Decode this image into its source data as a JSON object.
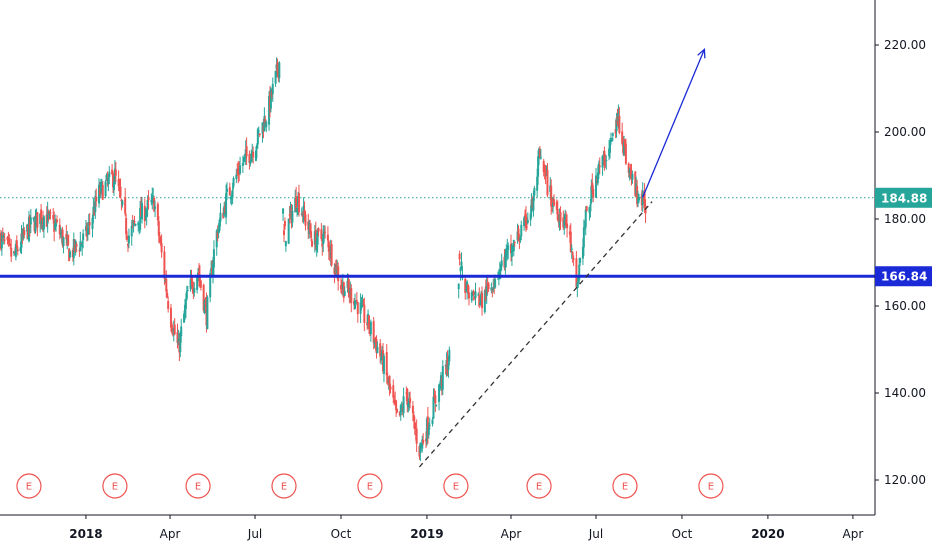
{
  "chart_data": {
    "type": "candlestick",
    "y_axis": {
      "min": 115,
      "max": 230,
      "ticks": [
        "220.00",
        "200.00",
        "180.00",
        "160.00",
        "140.00",
        "120.00"
      ],
      "tick_values": [
        220,
        200,
        180,
        160,
        140,
        120
      ],
      "position": "right"
    },
    "x_axis": {
      "labels": [
        "2018",
        "Apr",
        "Jul",
        "Oct",
        "2019",
        "Apr",
        "Jul",
        "Oct",
        "2020",
        "Apr"
      ],
      "label_dates": [
        "2018-01-01",
        "2018-04-01",
        "2018-07-01",
        "2018-10-01",
        "2019-01-01",
        "2019-04-01",
        "2019-07-01",
        "2019-10-01",
        "2020-01-01",
        "2020-04-01"
      ],
      "bold_labels": [
        "2018",
        "2019",
        "2020"
      ],
      "start": "2017-10-01",
      "end": "2020-04-15"
    },
    "colors": {
      "up": "#26a69a",
      "down": "#ef5350",
      "support_line": "#1a2ad6",
      "price_line": "#26a69a",
      "arrow": "#1a2ad6",
      "trendline": "#333333",
      "earnings": "#ef5350"
    },
    "price_series": [
      [
        "2017-10-01",
        176
      ],
      [
        "2017-10-15",
        171
      ],
      [
        "2017-11-01",
        178
      ],
      [
        "2017-11-15",
        181
      ],
      [
        "2017-12-01",
        178
      ],
      [
        "2017-12-15",
        172
      ],
      [
        "2018-01-01",
        176
      ],
      [
        "2018-01-15",
        186
      ],
      [
        "2018-02-01",
        190
      ],
      [
        "2018-02-15",
        176
      ],
      [
        "2018-03-01",
        181
      ],
      [
        "2018-03-15",
        184
      ],
      [
        "2018-04-01",
        158
      ],
      [
        "2018-04-10",
        150
      ],
      [
        "2018-04-20",
        163
      ],
      [
        "2018-05-01",
        168
      ],
      [
        "2018-05-10",
        158
      ],
      [
        "2018-05-20",
        176
      ],
      [
        "2018-06-01",
        185
      ],
      [
        "2018-06-15",
        192
      ],
      [
        "2018-07-01",
        197
      ],
      [
        "2018-07-15",
        205
      ],
      [
        "2018-07-27",
        216
      ],
      [
        "2018-08-01",
        176
      ],
      [
        "2018-08-15",
        185
      ],
      [
        "2018-09-01",
        175
      ],
      [
        "2018-09-15",
        176
      ],
      [
        "2018-10-01",
        165
      ],
      [
        "2018-10-15",
        162
      ],
      [
        "2018-11-01",
        155
      ],
      [
        "2018-11-15",
        147
      ],
      [
        "2018-12-01",
        133
      ],
      [
        "2018-12-10",
        140
      ],
      [
        "2018-12-24",
        127
      ],
      [
        "2019-01-01",
        132
      ],
      [
        "2019-01-15",
        142
      ],
      [
        "2019-01-25",
        148
      ],
      [
        "2019-02-05",
        169
      ],
      [
        "2019-02-15",
        163
      ],
      [
        "2019-03-01",
        161
      ],
      [
        "2019-03-15",
        167
      ],
      [
        "2019-04-01",
        173
      ],
      [
        "2019-04-15",
        178
      ],
      [
        "2019-04-25",
        184
      ],
      [
        "2019-05-01",
        194
      ],
      [
        "2019-05-15",
        184
      ],
      [
        "2019-06-01",
        178
      ],
      [
        "2019-06-10",
        164
      ],
      [
        "2019-06-20",
        180
      ],
      [
        "2019-07-01",
        190
      ],
      [
        "2019-07-15",
        196
      ],
      [
        "2019-07-25",
        203
      ],
      [
        "2019-08-05",
        191
      ],
      [
        "2019-08-15",
        185
      ],
      [
        "2019-08-25",
        183
      ]
    ],
    "horizontal_lines": [
      {
        "value": 184.88,
        "label": "184.88",
        "style": "dotted"
      },
      {
        "value": 166.84,
        "label": "166.84",
        "style": "solid"
      }
    ],
    "trendline": {
      "from": [
        "2018-12-24",
        123
      ],
      "to": [
        "2019-08-30",
        184
      ]
    },
    "arrow": {
      "from": [
        "2019-08-20",
        185
      ],
      "to": [
        "2019-10-25",
        219
      ]
    },
    "earnings_markers": {
      "label": "E",
      "dates": [
        "2017-11-01",
        "2018-02-01",
        "2018-05-01",
        "2018-08-01",
        "2018-11-01",
        "2019-02-01",
        "2019-05-01",
        "2019-08-01",
        "2019-11-01"
      ]
    }
  }
}
